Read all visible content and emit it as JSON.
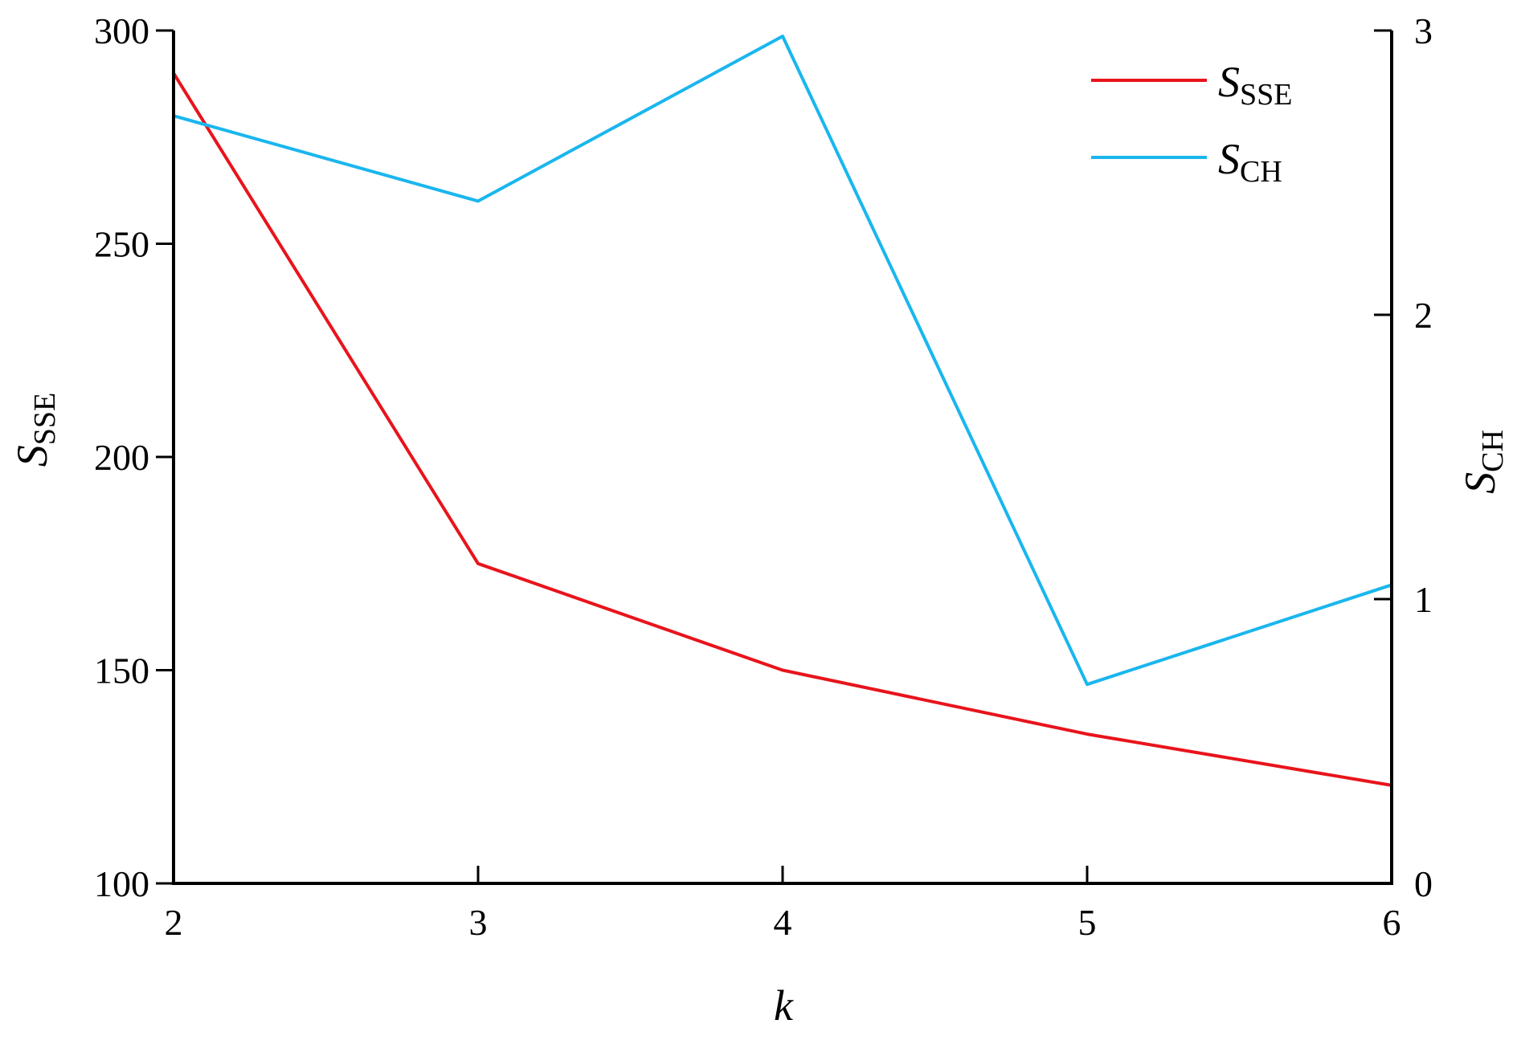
{
  "chart_data": {
    "type": "line",
    "x": [
      2,
      3,
      4,
      5,
      6
    ],
    "xlim": [
      2,
      6
    ],
    "x_ticks": [
      "2",
      "3",
      "4",
      "5",
      "6"
    ],
    "xlabel": "k",
    "left_axis": {
      "label_main": "S",
      "label_sub": "SSE",
      "ylim": [
        100,
        300
      ],
      "ticks": [
        "100",
        "150",
        "200",
        "250",
        "300"
      ]
    },
    "right_axis": {
      "label_main": "S",
      "label_sub": "CH",
      "ylim": [
        0,
        3
      ],
      "ticks": [
        "0",
        "1",
        "2",
        "3"
      ]
    },
    "series": [
      {
        "name_main": "S",
        "name_sub": "SSE",
        "axis": "left",
        "color": "#e8141c",
        "values": [
          290,
          175,
          150,
          135,
          123
        ]
      },
      {
        "name_main": "S",
        "name_sub": "CH",
        "axis": "right",
        "color": "#1ab6ee",
        "values": [
          2.7,
          2.4,
          2.98,
          0.7,
          1.05
        ]
      }
    ],
    "legend_position": "top-right",
    "grid": false
  }
}
